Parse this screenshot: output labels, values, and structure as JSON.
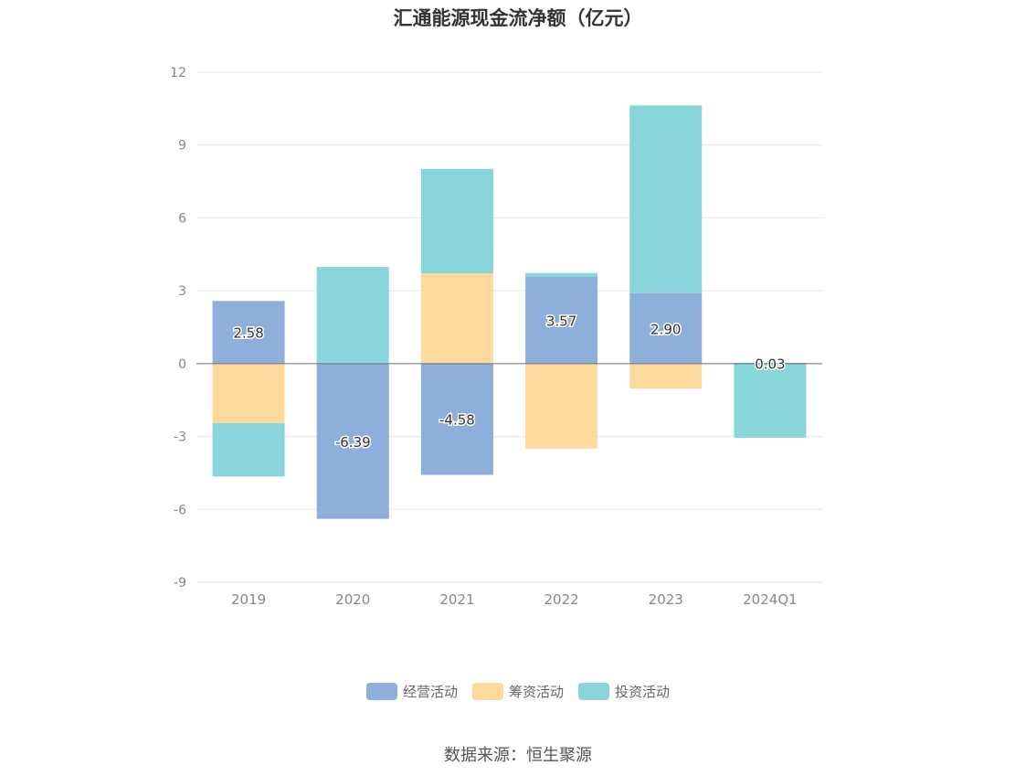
{
  "title": "汇通能源现金流净额（亿元）",
  "source": "数据来源：恒生聚源",
  "chart_data": {
    "type": "bar",
    "stacked": true,
    "categories": [
      "2019",
      "2020",
      "2021",
      "2022",
      "2023",
      "2024Q1"
    ],
    "series": [
      {
        "name": "经营活动",
        "color": "#8eaedb",
        "values": [
          2.58,
          -6.39,
          -4.58,
          3.57,
          2.9,
          0.03
        ]
      },
      {
        "name": "筹资活动",
        "color": "#fdd99e",
        "values": [
          -2.45,
          0.0,
          3.72,
          -3.5,
          -1.03,
          0.0
        ]
      },
      {
        "name": "投资活动",
        "color": "#88d6d9",
        "values": [
          -2.2,
          3.98,
          4.3,
          0.16,
          7.73,
          -3.05
        ]
      }
    ],
    "data_labels": [
      "2.58",
      "-6.39",
      "-4.58",
      "3.57",
      "2.90",
      "0.03"
    ],
    "ylim": [
      -9,
      12
    ],
    "yticks": [
      12,
      9,
      6,
      3,
      0,
      -3,
      -6,
      -9
    ],
    "grid": true,
    "legend_position": "bottom"
  }
}
